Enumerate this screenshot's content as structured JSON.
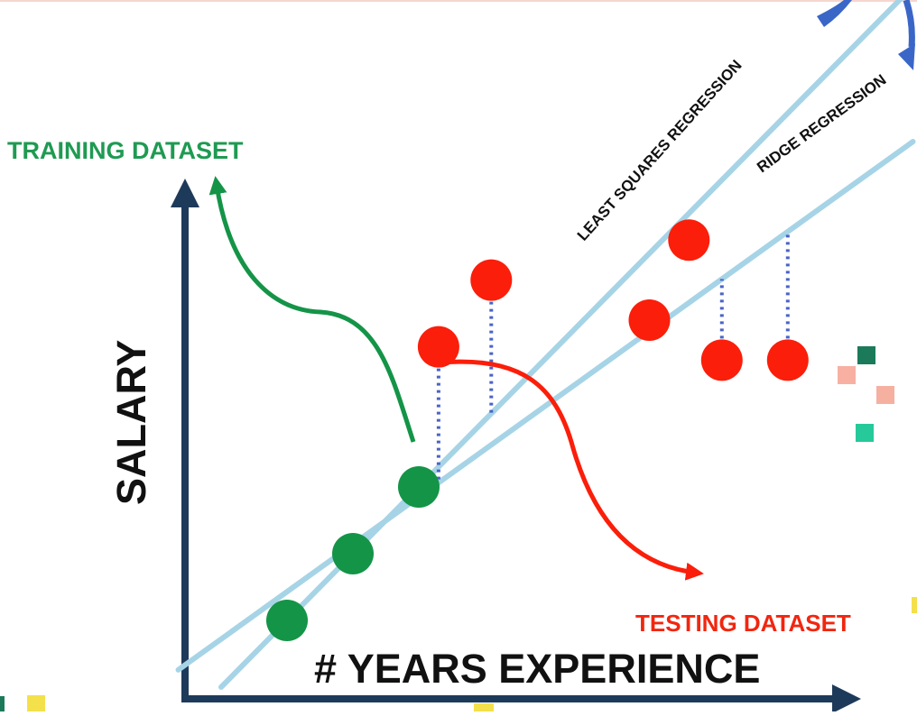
{
  "labels": {
    "training": "TRAINING DATASET",
    "testing": "TESTING DATASET",
    "least_squares": "LEAST SQUARES REGRESSION",
    "ridge": "RIDGE REGRESSION",
    "x_axis": "# YEARS EXPERIENCE",
    "y_axis": "SALARY"
  },
  "colors": {
    "axis": "#1e3a5a",
    "line": "#a6d4e6",
    "training": "#149447",
    "testing": "#fb1e0a",
    "residual": "#4a63c8",
    "arrow_accent": "#3a66c8",
    "training_label": "#1f9a52",
    "testing_label": "#f2260f",
    "confetti": [
      "#1a7a5a",
      "#f7b0a2",
      "#f6b0a0",
      "#26c99a",
      "#f4e04a"
    ]
  },
  "training_points": [
    {
      "x": 1.0,
      "y": 1.0
    },
    {
      "x": 2.0,
      "y": 2.0
    },
    {
      "x": 3.0,
      "y": 3.0
    }
  ],
  "testing_points": [
    {
      "x": 3.3,
      "y": 5.1,
      "residual_to": "ridge"
    },
    {
      "x": 4.1,
      "y": 6.1,
      "residual_to": "least_squares"
    },
    {
      "x": 6.5,
      "y": 5.5
    },
    {
      "x": 7.1,
      "y": 6.7
    },
    {
      "x": 7.6,
      "y": 4.9,
      "residual_to": "ridge"
    },
    {
      "x": 8.6,
      "y": 4.9,
      "residual_to": "ridge"
    }
  ],
  "regression_lines": {
    "least_squares": {
      "slope": 1.0,
      "intercept": 0.0
    },
    "ridge": {
      "slope": 0.71,
      "intercept": 0.72
    }
  }
}
